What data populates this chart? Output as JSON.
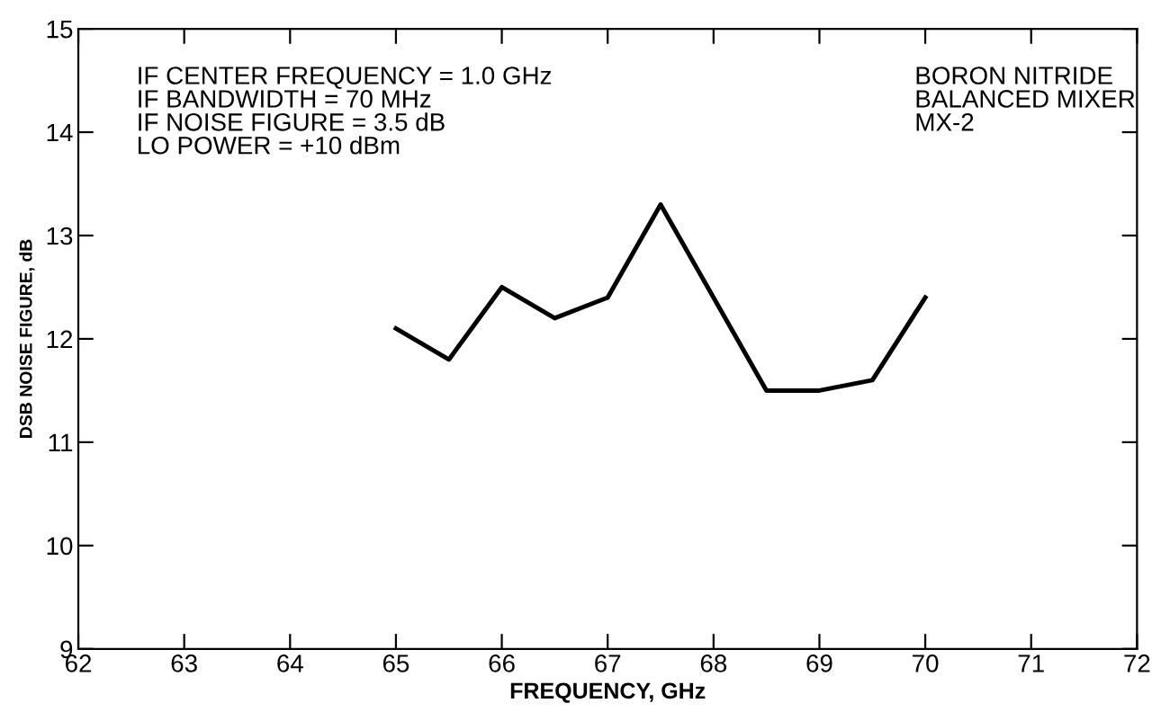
{
  "chart_data": {
    "type": "line",
    "xlabel": "FREQUENCY, GHz",
    "ylabel": "DSB NOISE FIGURE, dB",
    "x": [
      65,
      65.5,
      66,
      66.5,
      67,
      67.5,
      68.5,
      69,
      69.5,
      70
    ],
    "series": [
      {
        "color": "#000000",
        "values": [
          12.1,
          11.8,
          12.5,
          12.2,
          12.4,
          13.3,
          11.5,
          11.5,
          11.6,
          12.4
        ]
      }
    ],
    "xlim": [
      62,
      72
    ],
    "xticks": [
      62,
      63,
      64,
      65,
      66,
      67,
      68,
      69,
      70,
      71,
      72
    ],
    "ylim": [
      9,
      15
    ],
    "yticks": [
      9,
      10,
      11,
      12,
      13,
      14,
      15
    ],
    "annotations": [
      "IF CENTER FREQUENCY = 1.0 GHz\nIF BANDWIDTH = 70 MHz\nIF NOISE FIGURE = 3.5 dB\nLO POWER = +10 dBm",
      "BORON NITRIDE\nBALANCED MIXER\nMX-2"
    ],
    "grid": false,
    "marker": "none",
    "line_style": "solid"
  }
}
